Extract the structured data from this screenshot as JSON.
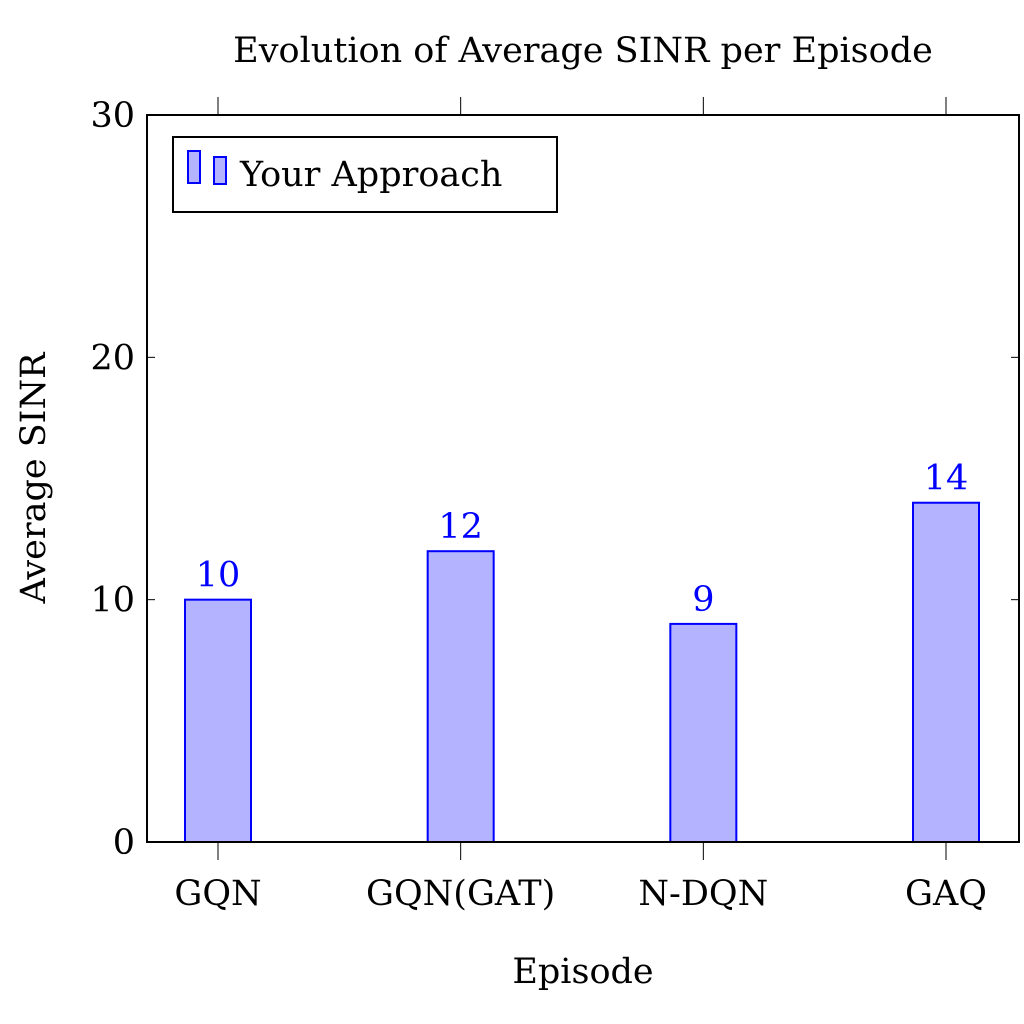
{
  "chart_data": {
    "type": "bar",
    "title": "Evolution of Average SINR per Episode",
    "xlabel": "Episode",
    "ylabel": "Average SINR",
    "categories": [
      "GQN",
      "GQN(GAT)",
      "N-DQN",
      "GAQ"
    ],
    "series": [
      {
        "name": "Your Approach",
        "values": [
          10,
          12,
          9,
          14
        ]
      }
    ],
    "data_labels": [
      "10",
      "12",
      "9",
      "14"
    ],
    "ylim": [
      0,
      30
    ],
    "yticks": [
      0,
      10,
      20,
      30
    ],
    "ytick_labels": [
      "0",
      "10",
      "20",
      "30"
    ],
    "legend_position": "top-left",
    "grid": false,
    "colors": {
      "bar_fill": "#b3b3ff",
      "bar_stroke": "#0000ff",
      "label": "#0000ff",
      "axis": "#000000"
    }
  }
}
